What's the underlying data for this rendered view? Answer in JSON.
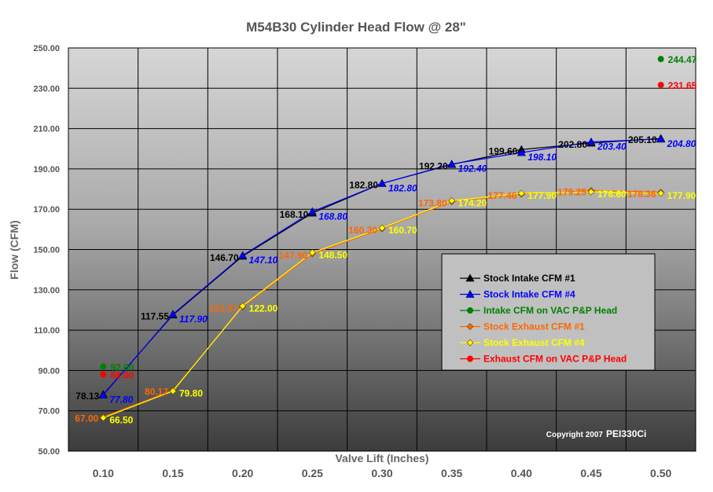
{
  "chart_data": {
    "type": "line",
    "title": "M54B30 Cylinder Head Flow @ 28\"",
    "xlabel": "Valve Lift (Inches)",
    "ylabel": "Flow (CFM)",
    "xlim": [
      0.075,
      0.525
    ],
    "ylim": [
      50,
      250
    ],
    "x_ticks": [
      "0.10",
      "0.15",
      "0.20",
      "0.25",
      "0.30",
      "0.35",
      "0.40",
      "0.45",
      "0.50"
    ],
    "y_ticks": [
      "50.00",
      "70.00",
      "90.00",
      "110.00",
      "130.00",
      "150.00",
      "170.00",
      "190.00",
      "210.00",
      "230.00",
      "250.00"
    ],
    "grid": true,
    "legend_position": "lower-right",
    "copyright": "Copyright 2007",
    "author": "PEI330Ci",
    "series": [
      {
        "name": "Stock Intake CFM #1",
        "color": "#000000",
        "marker": "triangle",
        "x": [
          0.1,
          0.15,
          0.2,
          0.25,
          0.3,
          0.35,
          0.4,
          0.45,
          0.5
        ],
        "y": [
          78.13,
          117.55,
          146.7,
          168.1,
          182.8,
          192.2,
          199.6,
          202.8,
          205.1
        ],
        "labels": [
          "78.13",
          "117.55",
          "146.70",
          "168.10",
          "182.80",
          "192.20",
          "199.60",
          "202.80",
          "205.10"
        ]
      },
      {
        "name": "Stock Intake CFM #4",
        "color": "#0000ff",
        "marker": "triangle",
        "x": [
          0.1,
          0.15,
          0.2,
          0.25,
          0.3,
          0.35,
          0.4,
          0.45,
          0.5
        ],
        "y": [
          77.8,
          117.9,
          147.1,
          168.8,
          182.8,
          192.4,
          198.1,
          203.4,
          204.8
        ],
        "labels": [
          "77.80",
          "117.90",
          "147.10",
          "168.80",
          "182.80",
          "192.40",
          "198.10",
          "203.40",
          "204.80"
        ]
      },
      {
        "name": "Intake CFM on VAC P&P Head",
        "color": "#008000",
        "marker": "circle",
        "x": [
          0.1,
          0.5
        ],
        "y": [
          92.0,
          244.47
        ],
        "labels": [
          "92.00",
          "244.47"
        ]
      },
      {
        "name": "Stock Exhaust CFM #1",
        "color": "#ff6600",
        "marker": "diamond",
        "x": [
          0.1,
          0.15,
          0.2,
          0.25,
          0.3,
          0.35,
          0.4,
          0.45,
          0.5
        ],
        "y": [
          67.0,
          80.17,
          121.57,
          147.9,
          160.3,
          173.8,
          177.46,
          179.25,
          178.36
        ],
        "labels": [
          "67.00",
          "80.17",
          "121.57",
          "147.90",
          "160.30",
          "173.80",
          "177.46",
          "179.25",
          "178.36"
        ]
      },
      {
        "name": "Stock Exhaust CFM #4",
        "color": "#ffff00",
        "marker": "diamond",
        "x": [
          0.1,
          0.15,
          0.2,
          0.25,
          0.3,
          0.35,
          0.4,
          0.45,
          0.5
        ],
        "y": [
          66.5,
          79.8,
          122.0,
          148.5,
          160.7,
          174.2,
          177.9,
          178.6,
          177.9
        ],
        "labels": [
          "66.50",
          "79.80",
          "122.00",
          "148.50",
          "160.70",
          "174.20",
          "177.90",
          "178.60",
          "177.90"
        ]
      },
      {
        "name": "Exhaust CFM on VAC P&P Head",
        "color": "#ff0000",
        "marker": "circle",
        "x": [
          0.1,
          0.5
        ],
        "y": [
          88.0,
          231.65
        ],
        "labels": [
          "88.00",
          "231.65"
        ]
      }
    ]
  }
}
